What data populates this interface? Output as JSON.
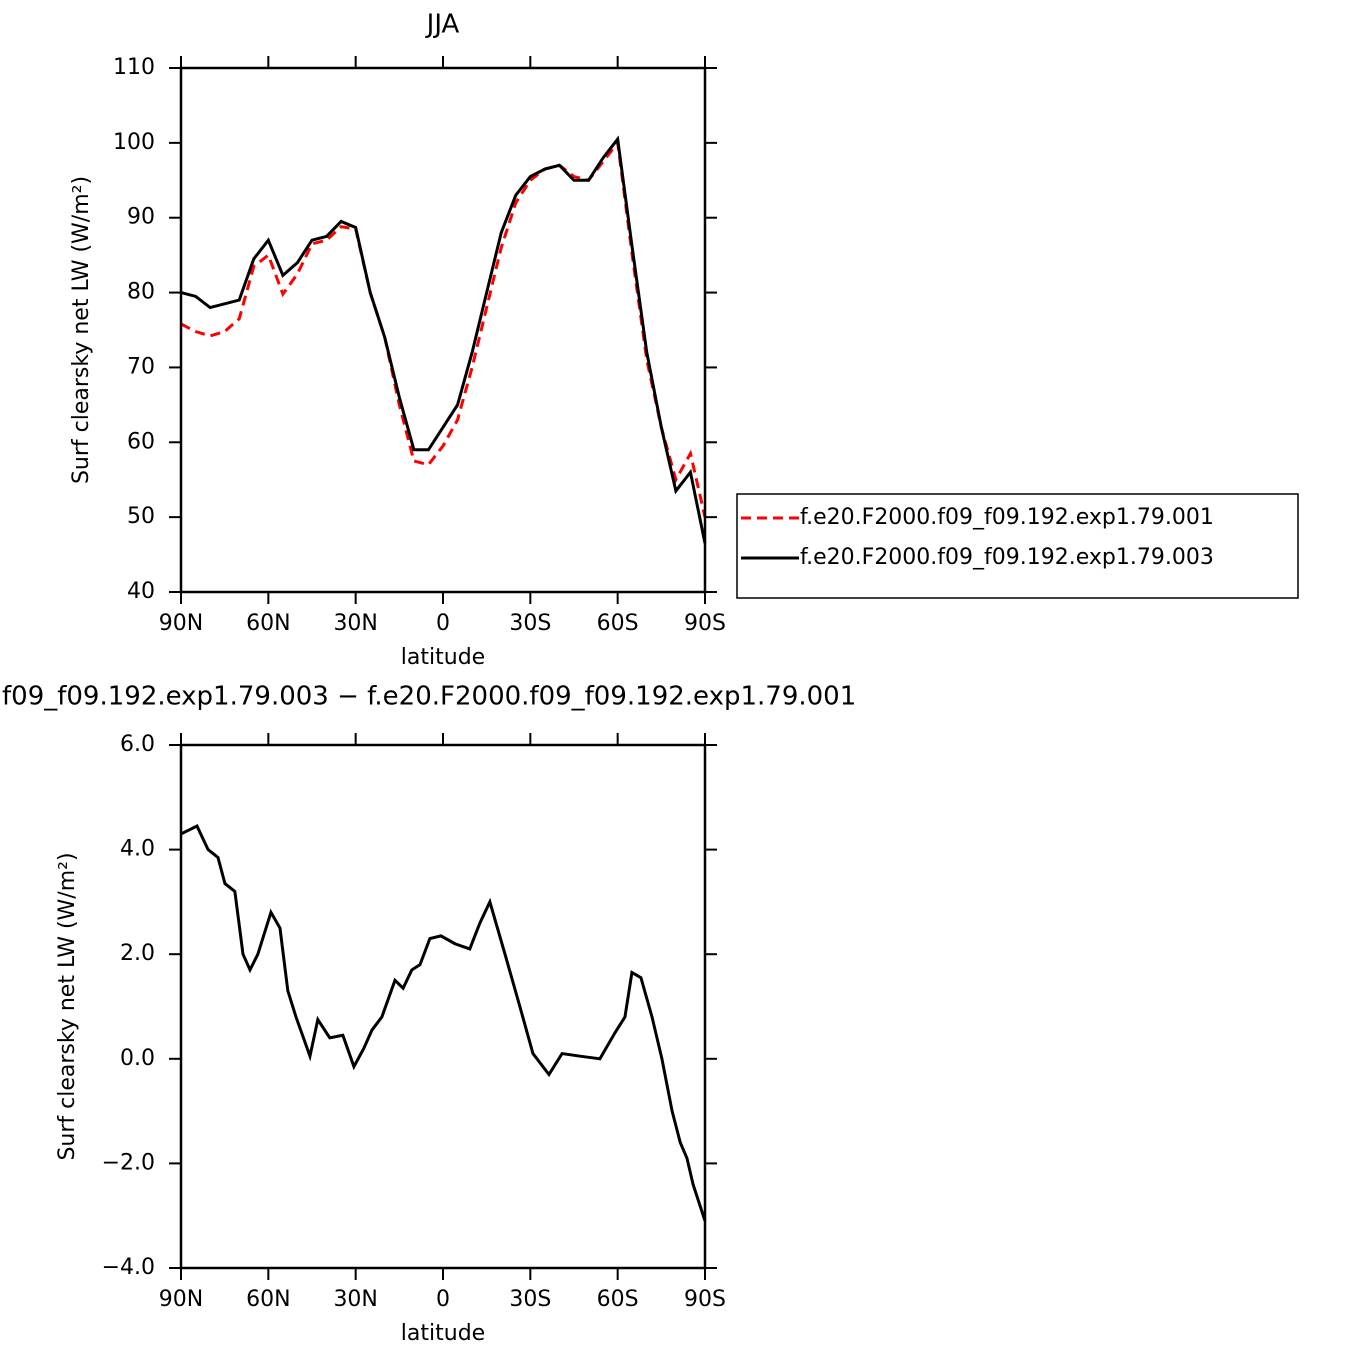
{
  "chart_data": [
    {
      "type": "line",
      "title": "JJA",
      "xlabel": "latitude",
      "ylabel": "Surf clearsky net LW (W/m²)",
      "x": [
        90,
        85,
        80,
        75,
        70,
        65,
        60,
        55,
        50,
        45,
        40,
        35,
        30,
        25,
        20,
        15,
        10,
        5,
        0,
        -5,
        -10,
        -15,
        -20,
        -25,
        -30,
        -35,
        -40,
        -45,
        -50,
        -55,
        -60,
        -65,
        -70,
        -75,
        -80,
        -85,
        -90
      ],
      "series": [
        {
          "name": "f.e20.F2000.f09_f09.192.exp1.79.001",
          "color": "#ff0000",
          "line_style": "dashed",
          "values": [
            75.8,
            74.8,
            74.2,
            74.8,
            76.5,
            83.5,
            85.0,
            79.8,
            82.5,
            86.5,
            87.0,
            88.8,
            88.5,
            80,
            74,
            65,
            57.5,
            57,
            59.5,
            63,
            70,
            78,
            86,
            92,
            95,
            96.5,
            97,
            95.5,
            95,
            97.5,
            100,
            85,
            71,
            62,
            55,
            58.5,
            50
          ]
        },
        {
          "name": "f.e20.F2000.f09_f09.192.exp1.79.003",
          "color": "#000000",
          "line_style": "solid",
          "values": [
            80,
            79.5,
            78,
            78.5,
            79,
            84.5,
            87,
            82.3,
            84,
            87,
            87.5,
            89.5,
            88.7,
            80,
            74,
            66,
            59,
            59,
            62,
            65,
            72,
            80,
            88,
            93,
            95.5,
            96.5,
            97,
            95,
            95,
            98,
            100.5,
            86,
            72,
            62,
            53.5,
            56,
            46.5
          ]
        }
      ],
      "xlim": [
        90,
        -90
      ],
      "xticks": [
        {
          "value": 90,
          "label": "90N"
        },
        {
          "value": 60,
          "label": "60N"
        },
        {
          "value": 30,
          "label": "30N"
        },
        0,
        {
          "value": -30,
          "label": "30S"
        },
        {
          "value": -60,
          "label": "60S"
        },
        {
          "value": -90,
          "label": "90S"
        }
      ],
      "ylim": [
        40,
        110
      ],
      "yticks": [
        40,
        50,
        60,
        70,
        80,
        90,
        100,
        110
      ],
      "legend": "right"
    },
    {
      "type": "line",
      "title": "f09_f09.192.exp1.79.003 − f.e20.F2000.f09_f09.192.exp1.79.001",
      "xlabel": "latitude",
      "ylabel": "Surf clearsky net LW (W/m²)",
      "x": [
        90,
        84.5,
        80.7,
        77.3,
        74.9,
        71.5,
        68.7,
        66.3,
        63.6,
        59.1,
        56.0,
        53.3,
        50.5,
        45.7,
        43.0,
        38.9,
        34.4,
        30.6,
        27.2,
        24.4,
        21.0,
        16.5,
        13.7,
        10.7,
        7.9,
        4.5,
        0.7,
        -4.1,
        -9.2,
        -12.7,
        -16.1,
        -21.3,
        -26.4,
        -30.9,
        -36.4,
        -40.9,
        -47.1,
        -53.9,
        -59.1,
        -62.5,
        -64.9,
        -68.0,
        -71.8,
        -75.2,
        -78.7,
        -81.5,
        -83.8,
        -85.9,
        -90
      ],
      "series": [
        {
          "color": "#000000",
          "line_style": "solid",
          "values": [
            4.3,
            4.45,
            4.0,
            3.85,
            3.35,
            3.2,
            2.0,
            1.7,
            2.0,
            2.8,
            2.5,
            1.3,
            0.8,
            0.05,
            0.75,
            0.4,
            0.45,
            -0.15,
            0.2,
            0.55,
            0.8,
            1.5,
            1.35,
            1.7,
            1.8,
            2.3,
            2.35,
            2.2,
            2.1,
            2.6,
            3.0,
            2.0,
            1.0,
            0.1,
            -0.3,
            0.1,
            0.05,
            0.0,
            0.5,
            0.8,
            1.65,
            1.55,
            0.8,
            0.0,
            -1.0,
            -1.6,
            -1.9,
            -2.4,
            -3.1
          ]
        }
      ],
      "xlim": [
        90,
        -90
      ],
      "xticks": [
        {
          "value": 90,
          "label": "90N"
        },
        {
          "value": 60,
          "label": "60N"
        },
        {
          "value": 30,
          "label": "30N"
        },
        0,
        {
          "value": -30,
          "label": "30S"
        },
        {
          "value": -60,
          "label": "60S"
        },
        {
          "value": -90,
          "label": "90S"
        }
      ],
      "ylim": [
        -4,
        6
      ],
      "yticks": [
        {
          "value": -4,
          "label": "−4.0"
        },
        {
          "value": -2,
          "label": "−2.0"
        },
        {
          "value": 0,
          "label": "0.0"
        },
        {
          "value": 2,
          "label": "2.0"
        },
        {
          "value": 4,
          "label": "4.0"
        },
        {
          "value": 6,
          "label": "6.0"
        }
      ]
    }
  ]
}
